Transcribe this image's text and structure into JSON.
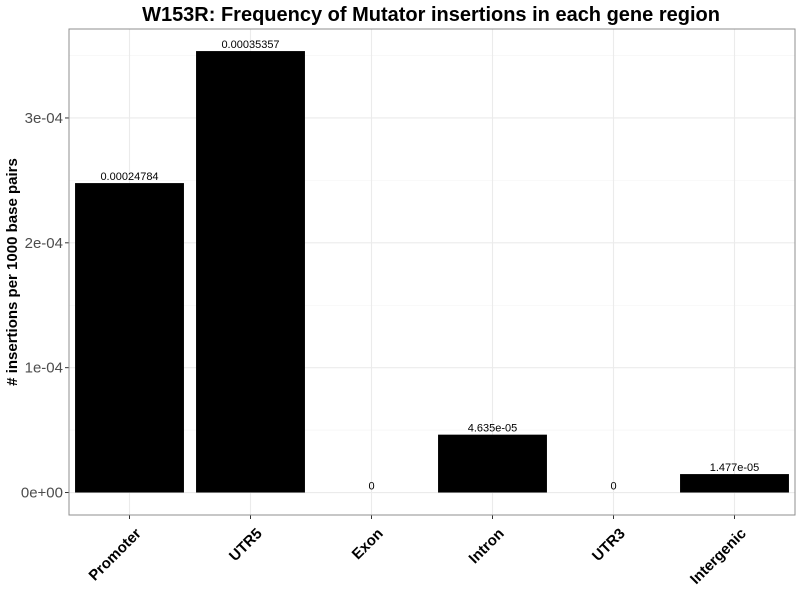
{
  "chart_data": {
    "type": "bar",
    "title": "W153R: Frequency of Mutator insertions in each gene region",
    "xlabel": "",
    "ylabel": "# insertions per 1000 base pairs",
    "categories": [
      "Promoter",
      "UTR5",
      "Exon",
      "Intron",
      "UTR3",
      "Intergenic"
    ],
    "values": [
      0.00024784,
      0.00035357,
      0,
      4.635e-05,
      0,
      1.477e-05
    ],
    "value_labels": [
      "0.00024784",
      "0.00035357",
      "0",
      "4.635e-05",
      "0",
      "1.477e-05"
    ],
    "ylim": [
      -1.8e-05,
      0.00037125
    ],
    "yticks": [
      0,
      0.0001,
      0.0002,
      0.0003
    ],
    "ytick_labels": [
      "0e+00",
      "1e-04",
      "2e-04",
      "3e-04"
    ],
    "bar_color": "#000000",
    "grid": true,
    "legend": "none"
  }
}
